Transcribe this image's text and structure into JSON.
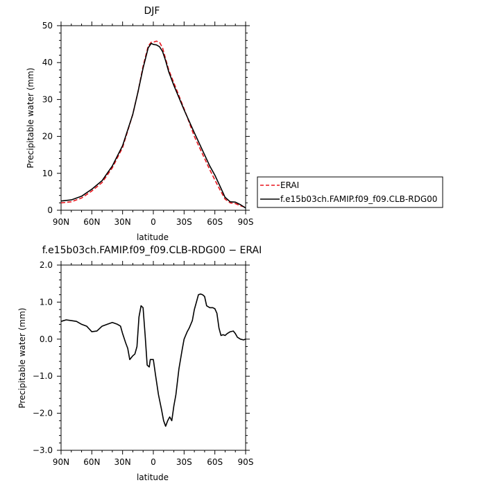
{
  "chart_data": [
    {
      "type": "line",
      "title": "DJF",
      "xlabel": "latitude",
      "ylabel": "Precipitable water (mm)",
      "xlim": [
        90,
        -90
      ],
      "ylim": [
        0,
        50
      ],
      "x_ticks": [
        90,
        60,
        30,
        0,
        -30,
        -60,
        -90
      ],
      "x_tick_labels": [
        "90N",
        "60N",
        "30N",
        "0",
        "30S",
        "60S",
        "90S"
      ],
      "y_ticks": [
        0,
        10,
        20,
        30,
        40,
        50
      ],
      "y_tick_labels": [
        "0",
        "10",
        "20",
        "30",
        "40",
        "50"
      ],
      "grid": false,
      "legend": {
        "placement": "right",
        "entries": [
          {
            "name": "ERAI",
            "color": "#e8141c",
            "dash": "dashed"
          },
          {
            "name": "f.e15b03ch.FAMIP.f09_f09.CLB-RDG00",
            "color": "#000000",
            "dash": "solid"
          }
        ]
      },
      "series": [
        {
          "name": "ERAI",
          "color": "#e8141c",
          "x": [
            90,
            80,
            70,
            60,
            50,
            40,
            30,
            20,
            15,
            10,
            5,
            2,
            0,
            -3,
            -6,
            -9,
            -12,
            -15,
            -20,
            -30,
            -40,
            -50,
            -55,
            -60,
            -65,
            -70,
            -75,
            -80,
            -85,
            -90
          ],
          "y": [
            2.0,
            2.3,
            3.3,
            5.2,
            7.5,
            11.5,
            17.0,
            26.0,
            32.0,
            39.0,
            44.5,
            45.5,
            45.5,
            45.8,
            45.5,
            44.0,
            41.0,
            38.0,
            34.5,
            27.5,
            20.0,
            14.0,
            11.0,
            8.2,
            5.5,
            3.0,
            2.0,
            1.8,
            1.2,
            0.8
          ]
        },
        {
          "name": "f.e15b03ch.FAMIP.f09_f09.CLB-RDG00",
          "color": "#000000",
          "x": [
            90,
            80,
            70,
            60,
            50,
            40,
            30,
            20,
            15,
            10,
            5,
            2,
            0,
            -3,
            -6,
            -9,
            -12,
            -15,
            -20,
            -30,
            -40,
            -50,
            -55,
            -60,
            -65,
            -70,
            -75,
            -80,
            -85,
            -90
          ],
          "y": [
            2.5,
            2.8,
            3.8,
            5.7,
            8.0,
            12.0,
            17.5,
            26.0,
            32.0,
            38.5,
            44.0,
            45.2,
            44.9,
            44.8,
            44.3,
            43.0,
            40.5,
            37.5,
            33.8,
            27.2,
            21.0,
            15.0,
            12.0,
            9.5,
            6.5,
            3.5,
            2.3,
            2.2,
            1.5,
            0.6
          ]
        }
      ]
    },
    {
      "type": "line",
      "title": "f.e15b03ch.FAMIP.f09_f09.CLB-RDG00 − ERAI",
      "xlabel": "latitude",
      "ylabel": "Precipitable water (mm)",
      "xlim": [
        90,
        -90
      ],
      "ylim": [
        -3.0,
        2.0
      ],
      "x_ticks": [
        90,
        60,
        30,
        0,
        -30,
        -60,
        -90
      ],
      "x_tick_labels": [
        "90N",
        "60N",
        "30N",
        "0",
        "30S",
        "60S",
        "90S"
      ],
      "y_ticks": [
        -3,
        -2,
        -1,
        0,
        1,
        2
      ],
      "y_tick_labels": [
        "−3.0",
        "−2.0",
        "−1.0",
        "0.0",
        "1.0",
        "2.0"
      ],
      "grid": false,
      "series": [
        {
          "color": "#000000",
          "x": [
            90,
            85,
            80,
            75,
            70,
            65,
            60,
            55,
            50,
            45,
            40,
            35,
            32,
            30,
            27,
            25,
            23,
            20,
            18,
            16,
            14,
            12,
            10,
            8,
            6,
            4,
            3,
            0,
            -2,
            -5,
            -8,
            -10,
            -12,
            -14,
            -16,
            -18,
            -20,
            -22,
            -25,
            -28,
            -30,
            -33,
            -35,
            -38,
            -40,
            -42,
            -44,
            -46,
            -48,
            -50,
            -52,
            -55,
            -58,
            -60,
            -62,
            -64,
            -66,
            -68,
            -70,
            -72,
            -75,
            -78,
            -80,
            -82,
            -85,
            -88,
            -90
          ],
          "y": [
            0.48,
            0.52,
            0.5,
            0.48,
            0.4,
            0.35,
            0.2,
            0.22,
            0.35,
            0.4,
            0.45,
            0.4,
            0.35,
            0.15,
            -0.1,
            -0.25,
            -0.55,
            -0.45,
            -0.4,
            -0.2,
            0.6,
            0.9,
            0.85,
            0.1,
            -0.7,
            -0.75,
            -0.55,
            -0.55,
            -0.95,
            -1.5,
            -1.9,
            -2.2,
            -2.35,
            -2.2,
            -2.1,
            -2.2,
            -1.8,
            -1.5,
            -0.8,
            -0.3,
            0.0,
            0.2,
            0.3,
            0.5,
            0.8,
            1.0,
            1.2,
            1.22,
            1.2,
            1.15,
            0.9,
            0.85,
            0.85,
            0.82,
            0.7,
            0.3,
            0.1,
            0.12,
            0.1,
            0.15,
            0.2,
            0.22,
            0.15,
            0.05,
            0.0,
            -0.02,
            0.0
          ]
        }
      ]
    }
  ]
}
